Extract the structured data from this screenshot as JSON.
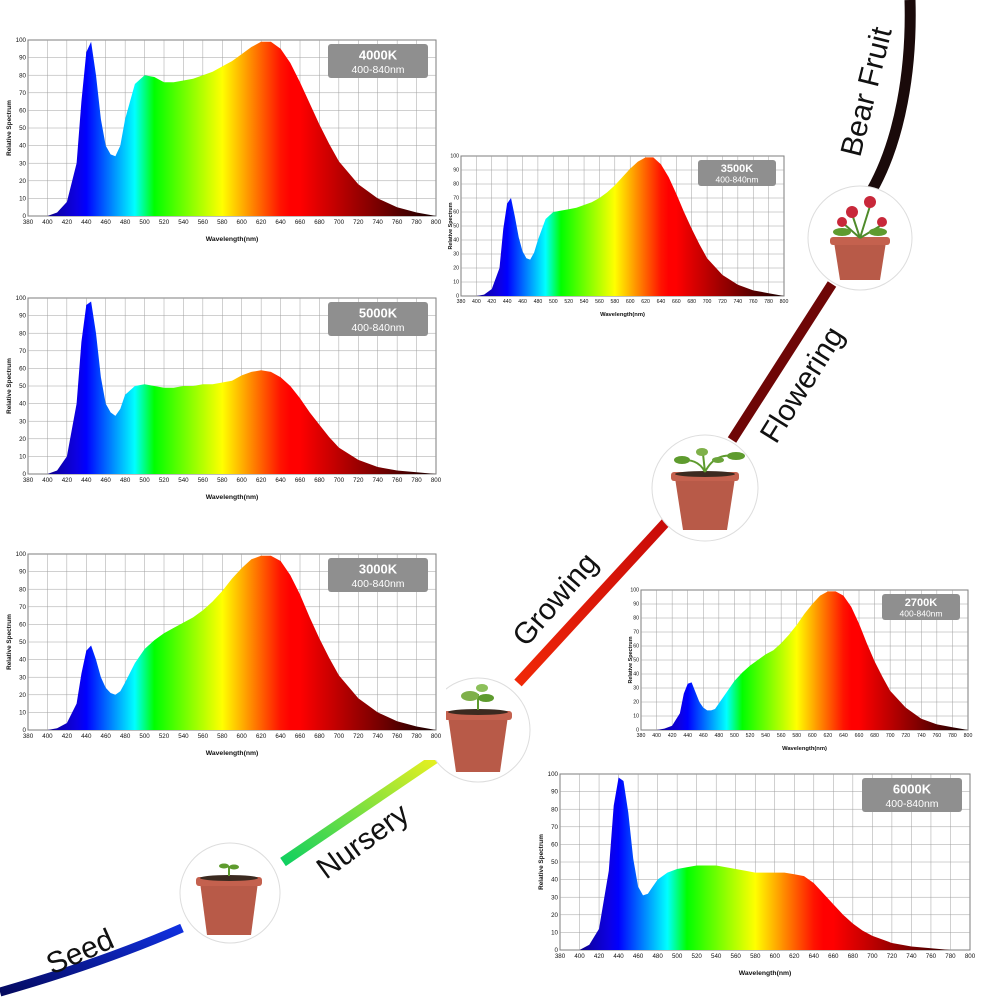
{
  "palette": {
    "background": "#ffffff",
    "grid": "#9a9a9a",
    "badge": "#8f8f8f",
    "pot": "#b85a48",
    "soil": "#3b2a20",
    "leaf": "#5e9b2e",
    "flower": "#c8283a"
  },
  "growth_stages": {
    "labels": [
      "Seed",
      "Nursery",
      "Growing",
      "Flowering",
      "Bear Fruit"
    ],
    "colors": [
      "#0a1fb0",
      "#2fe05a",
      "#e8210a",
      "#7a0404",
      "#1a0a0a"
    ]
  },
  "chart_data": [
    {
      "type": "area",
      "id": "c4000",
      "badge_title": "4000K",
      "badge_range": "400-840nm",
      "ylabel": "Relative Spectrum",
      "xlabel": "Wavelength(nm)",
      "xlim": [
        380,
        800
      ],
      "ylim": [
        0,
        100
      ],
      "xticks": [
        380,
        400,
        420,
        440,
        460,
        480,
        500,
        520,
        540,
        560,
        580,
        600,
        620,
        640,
        660,
        680,
        700,
        720,
        740,
        760,
        780,
        800
      ],
      "yticks": [
        0,
        10,
        20,
        30,
        40,
        50,
        60,
        70,
        80,
        90,
        100
      ],
      "x": [
        380,
        400,
        410,
        420,
        430,
        435,
        440,
        445,
        450,
        455,
        460,
        465,
        470,
        475,
        480,
        490,
        500,
        510,
        520,
        530,
        540,
        550,
        560,
        570,
        580,
        590,
        600,
        610,
        620,
        630,
        640,
        650,
        660,
        670,
        680,
        690,
        700,
        720,
        740,
        760,
        780,
        800
      ],
      "y": [
        0,
        0,
        2,
        8,
        30,
        65,
        93,
        99,
        80,
        55,
        40,
        35,
        34,
        40,
        55,
        75,
        80,
        79,
        76,
        76,
        77,
        78,
        80,
        82,
        85,
        88,
        92,
        96,
        99,
        99,
        95,
        87,
        76,
        64,
        52,
        41,
        31,
        18,
        10,
        5,
        2,
        0
      ]
    },
    {
      "type": "area",
      "id": "c3500",
      "badge_title": "3500K",
      "badge_range": "400-840nm",
      "ylabel": "Relative Spectrum",
      "xlabel": "Wavelength(nm)",
      "xlim": [
        380,
        800
      ],
      "ylim": [
        0,
        100
      ],
      "xticks": [
        380,
        400,
        420,
        440,
        460,
        480,
        500,
        520,
        540,
        560,
        580,
        600,
        620,
        640,
        660,
        680,
        700,
        720,
        740,
        760,
        780,
        800
      ],
      "yticks": [
        0,
        10,
        20,
        30,
        40,
        50,
        60,
        70,
        80,
        90,
        100
      ],
      "x": [
        380,
        400,
        410,
        420,
        430,
        435,
        440,
        445,
        450,
        455,
        460,
        465,
        470,
        475,
        480,
        490,
        500,
        510,
        520,
        530,
        540,
        550,
        560,
        570,
        580,
        590,
        600,
        610,
        620,
        630,
        640,
        650,
        660,
        670,
        680,
        690,
        700,
        720,
        740,
        760,
        780,
        800
      ],
      "y": [
        0,
        0,
        1,
        5,
        20,
        48,
        66,
        70,
        57,
        42,
        32,
        27,
        26,
        31,
        40,
        55,
        60,
        61,
        62,
        63,
        65,
        67,
        70,
        74,
        79,
        85,
        91,
        96,
        99,
        99,
        94,
        85,
        73,
        60,
        48,
        37,
        27,
        15,
        8,
        4,
        2,
        0
      ]
    },
    {
      "type": "area",
      "id": "c5000",
      "badge_title": "5000K",
      "badge_range": "400-840nm",
      "ylabel": "Relative Spectrum",
      "xlabel": "Wavelength(nm)",
      "xlim": [
        380,
        800
      ],
      "ylim": [
        0,
        100
      ],
      "xticks": [
        380,
        400,
        420,
        440,
        460,
        480,
        500,
        520,
        540,
        560,
        580,
        600,
        620,
        640,
        660,
        680,
        700,
        720,
        740,
        760,
        780,
        800
      ],
      "yticks": [
        0,
        10,
        20,
        30,
        40,
        50,
        60,
        70,
        80,
        90,
        100
      ],
      "x": [
        380,
        400,
        410,
        420,
        430,
        435,
        440,
        445,
        450,
        455,
        460,
        465,
        470,
        475,
        480,
        490,
        500,
        510,
        520,
        530,
        540,
        550,
        560,
        570,
        580,
        590,
        600,
        610,
        620,
        630,
        640,
        650,
        660,
        670,
        680,
        690,
        700,
        720,
        740,
        760,
        780,
        800
      ],
      "y": [
        0,
        0,
        2,
        10,
        40,
        75,
        96,
        98,
        80,
        55,
        40,
        35,
        33,
        37,
        45,
        50,
        51,
        50,
        49,
        49,
        50,
        50,
        51,
        51,
        52,
        53,
        56,
        58,
        59,
        58,
        55,
        50,
        43,
        35,
        28,
        21,
        15,
        8,
        4,
        2,
        1,
        0
      ]
    },
    {
      "type": "area",
      "id": "c3000",
      "badge_title": "3000K",
      "badge_range": "400-840nm",
      "ylabel": "Relative Spectrum",
      "xlabel": "Wavelength(nm)",
      "xlim": [
        380,
        800
      ],
      "ylim": [
        0,
        100
      ],
      "xticks": [
        380,
        400,
        420,
        440,
        460,
        480,
        500,
        520,
        540,
        560,
        580,
        600,
        620,
        640,
        660,
        680,
        700,
        720,
        740,
        760,
        780,
        800
      ],
      "yticks": [
        0,
        10,
        20,
        30,
        40,
        50,
        60,
        70,
        80,
        90,
        100
      ],
      "x": [
        380,
        400,
        410,
        420,
        430,
        435,
        440,
        445,
        450,
        455,
        460,
        465,
        470,
        475,
        480,
        490,
        500,
        510,
        520,
        530,
        540,
        550,
        560,
        570,
        580,
        590,
        600,
        610,
        620,
        630,
        640,
        650,
        660,
        670,
        680,
        690,
        700,
        720,
        740,
        760,
        780,
        800
      ],
      "y": [
        0,
        0,
        1,
        4,
        15,
        32,
        45,
        48,
        40,
        30,
        24,
        21,
        20,
        22,
        27,
        38,
        46,
        51,
        55,
        58,
        61,
        64,
        68,
        73,
        79,
        86,
        92,
        97,
        99,
        99,
        96,
        88,
        77,
        64,
        52,
        41,
        31,
        18,
        10,
        5,
        2,
        0
      ]
    },
    {
      "type": "area",
      "id": "c2700",
      "badge_title": "2700K",
      "badge_range": "400-840nm",
      "ylabel": "Relative Spectrum",
      "xlabel": "Wavelength(nm)",
      "xlim": [
        380,
        800
      ],
      "ylim": [
        0,
        100
      ],
      "xticks": [
        380,
        400,
        420,
        440,
        460,
        480,
        500,
        520,
        540,
        560,
        580,
        600,
        620,
        640,
        660,
        680,
        700,
        720,
        740,
        760,
        780,
        800
      ],
      "yticks": [
        0,
        10,
        20,
        30,
        40,
        50,
        60,
        70,
        80,
        90,
        100
      ],
      "x": [
        380,
        400,
        410,
        420,
        430,
        435,
        440,
        445,
        450,
        455,
        460,
        465,
        470,
        475,
        480,
        490,
        500,
        510,
        520,
        530,
        540,
        550,
        560,
        570,
        580,
        590,
        600,
        610,
        620,
        630,
        640,
        650,
        660,
        670,
        680,
        690,
        700,
        720,
        740,
        760,
        780,
        800
      ],
      "y": [
        0,
        0,
        1,
        3,
        12,
        26,
        33,
        34,
        27,
        20,
        16,
        14,
        14,
        15,
        19,
        27,
        35,
        41,
        46,
        50,
        54,
        57,
        62,
        68,
        75,
        83,
        90,
        96,
        99,
        99,
        96,
        88,
        76,
        62,
        49,
        38,
        28,
        16,
        8,
        4,
        2,
        0
      ]
    },
    {
      "type": "area",
      "id": "c6000",
      "badge_title": "6000K",
      "badge_range": "400-840nm",
      "ylabel": "Relative Spectrum",
      "xlabel": "Wavelength(nm)",
      "xlim": [
        380,
        800
      ],
      "ylim": [
        0,
        100
      ],
      "xticks": [
        380,
        400,
        420,
        440,
        460,
        480,
        500,
        520,
        540,
        560,
        580,
        600,
        620,
        640,
        660,
        680,
        700,
        720,
        740,
        760,
        780,
        800
      ],
      "yticks": [
        0,
        10,
        20,
        30,
        40,
        50,
        60,
        70,
        80,
        90,
        100
      ],
      "x": [
        380,
        400,
        410,
        420,
        430,
        435,
        440,
        445,
        450,
        455,
        460,
        465,
        470,
        475,
        480,
        490,
        500,
        510,
        520,
        530,
        540,
        550,
        560,
        570,
        580,
        590,
        600,
        610,
        620,
        630,
        640,
        650,
        660,
        670,
        680,
        690,
        700,
        720,
        740,
        760,
        780,
        800
      ],
      "y": [
        0,
        0,
        3,
        12,
        45,
        82,
        98,
        96,
        78,
        52,
        36,
        31,
        32,
        36,
        40,
        44,
        46,
        47,
        48,
        48,
        48,
        47,
        46,
        45,
        44,
        44,
        44,
        44,
        43,
        42,
        38,
        32,
        26,
        20,
        15,
        11,
        8,
        4,
        2,
        1,
        0,
        0
      ]
    }
  ]
}
